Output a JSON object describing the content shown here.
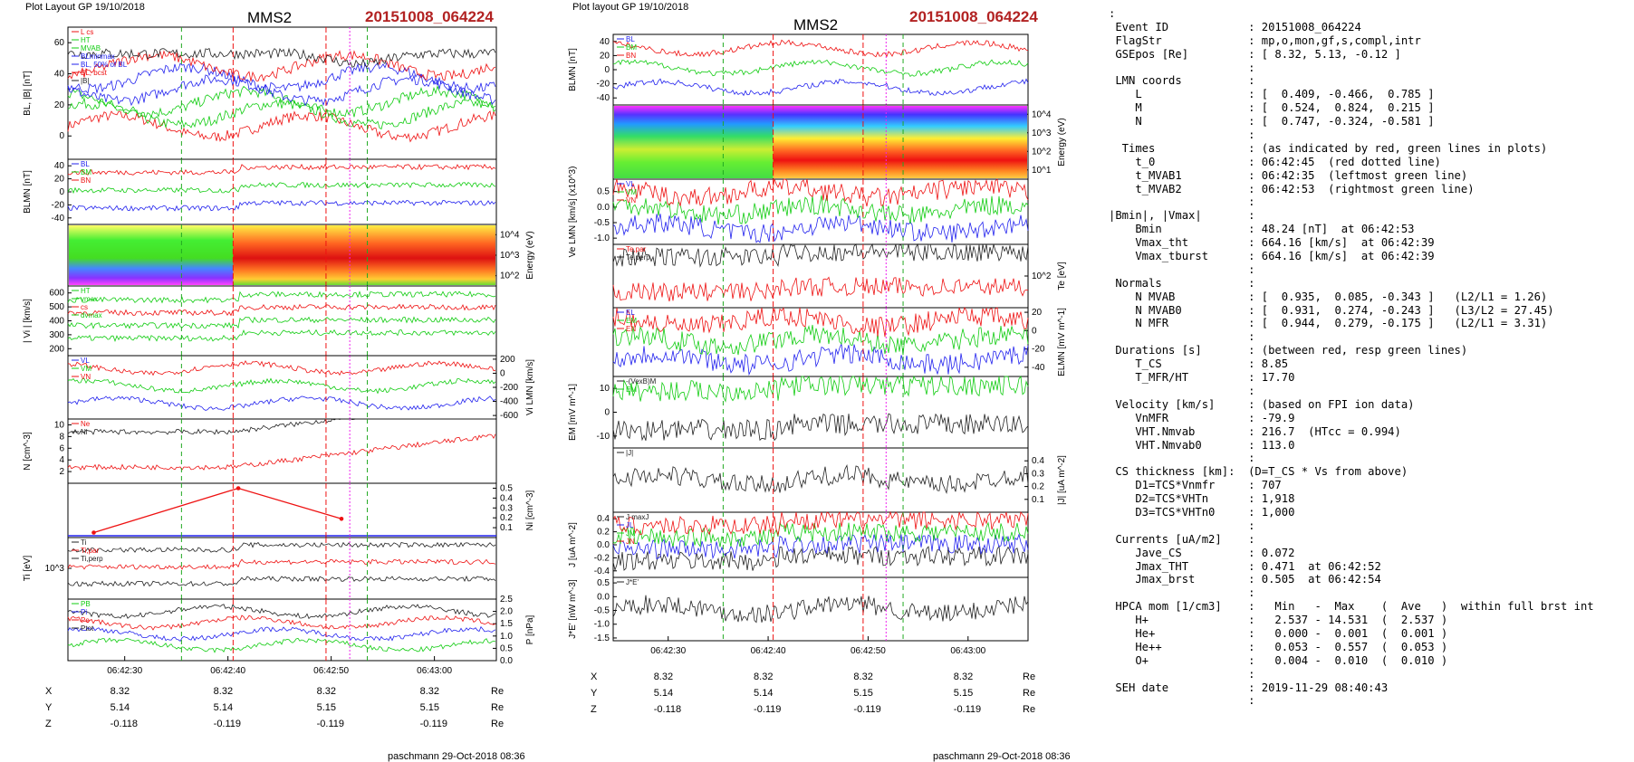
{
  "left_figure": {
    "header": "Plot Layout GP 19/10/2018",
    "spacecraft": "MMS2",
    "event": "20151008_064224",
    "footer": "paschmann 29-Oct-2018 08:36",
    "time_ticks": [
      "06:42:30",
      "06:42:40",
      "06:42:50",
      "06:43:00"
    ],
    "pos_rows": [
      {
        "label": "X",
        "values": [
          "8.32",
          "8.32",
          "8.32",
          "8.32"
        ],
        "unit": "Re"
      },
      {
        "label": "Y",
        "values": [
          "5.14",
          "5.14",
          "5.15",
          "5.15"
        ],
        "unit": "Re"
      },
      {
        "label": "Z",
        "values": [
          "-0.118",
          "-0.119",
          "-0.119",
          "-0.119"
        ],
        "unit": "Re"
      }
    ]
  },
  "right_figure": {
    "header": "Plot layout GP 19/10/2018",
    "spacecraft": "MMS2",
    "event": "20151008_064224",
    "footer": "paschmann 29-Oct-2018 08:36",
    "time_ticks": [
      "06:42:30",
      "06:42:40",
      "06:42:50",
      "06:43:00"
    ],
    "pos_rows": [
      {
        "label": "X",
        "values": [
          "8.32",
          "8.32",
          "8.32",
          "8.32"
        ],
        "unit": "Re"
      },
      {
        "label": "Y",
        "values": [
          "5.14",
          "5.14",
          "5.15",
          "5.15"
        ],
        "unit": "Re"
      },
      {
        "label": "Z",
        "values": [
          "-0.118",
          "-0.119",
          "-0.119",
          "-0.119"
        ],
        "unit": "Re"
      }
    ]
  },
  "chart_data": [
    {
      "type": "line",
      "figure": "left",
      "ylabel": "BL, |B| [nT]",
      "ylim": [
        -15,
        70
      ],
      "yticks": [
        "0",
        "20",
        "40",
        "60"
      ],
      "legend": [
        "L cs",
        "HT",
        "MVAB",
        "BLminmax",
        "BL, 50% of BL",
        "BL, bcst",
        "|B|"
      ]
    },
    {
      "type": "line",
      "figure": "left",
      "ylabel": "BLMN [nT]",
      "ylim": [
        -50,
        50
      ],
      "yticks": [
        "-40",
        "-20",
        "0",
        "20",
        "40"
      ],
      "legend": [
        "BL",
        "BM",
        "BN"
      ]
    },
    {
      "type": "heatmap",
      "figure": "left",
      "ylabel": "Energy (eV)",
      "yticks": [
        "10^2",
        "10^3",
        "10^4"
      ]
    },
    {
      "type": "line",
      "figure": "left",
      "ylabel": "| Vi | [km/s]",
      "ylim": [
        150,
        650
      ],
      "yticks": [
        "200",
        "300",
        "400",
        "500",
        "600"
      ],
      "legend": [
        "HT",
        "vmax",
        "cs",
        "dvmax"
      ]
    },
    {
      "type": "line",
      "figure": "left",
      "ylabel": "Vi LMN [km/s]",
      "ylim": [
        -650,
        250
      ],
      "yticks": [
        "-600",
        "-400",
        "-200",
        "0",
        "200"
      ],
      "legend": [
        "VL",
        "VM",
        "VN"
      ]
    },
    {
      "type": "line",
      "figure": "left",
      "ylabel": "N [cm^-3]",
      "ylim": [
        0,
        11
      ],
      "yticks": [
        "2",
        "4",
        "6",
        "8",
        "10"
      ],
      "legend": [
        "Ne",
        "Ni"
      ]
    },
    {
      "type": "line",
      "figure": "left",
      "ylabel": "Ni [cm^-3]",
      "ylim": [
        0,
        0.55
      ],
      "yticks": [
        "0.1",
        "0.2",
        "0.3",
        "0.4",
        "0.5"
      ],
      "legend": [
        "N He+",
        "N He++",
        "N O+"
      ],
      "series": [
        {
          "name": "N He++",
          "x": [
            "06:42:27",
            "06:42:41",
            "06:42:51"
          ],
          "values": [
            0.05,
            0.5,
            0.19
          ]
        }
      ]
    },
    {
      "type": "line",
      "figure": "left",
      "ylabel": "Ti [eV]",
      "yticks": [
        "10^3"
      ],
      "legend": [
        "Ti",
        "Ti,par",
        "Ti,perp"
      ]
    },
    {
      "type": "line",
      "figure": "left",
      "ylabel": "P [nPa]",
      "ylim": [
        0,
        2.5
      ],
      "yticks": [
        "0.0",
        "0.5",
        "1.0",
        "1.5",
        "2.0",
        "2.5"
      ],
      "legend": [
        "PB",
        "Pi",
        "Pe",
        "Ptot"
      ]
    },
    {
      "type": "line",
      "figure": "right",
      "ylabel": "BLMN [nT]",
      "ylim": [
        -50,
        50
      ],
      "yticks": [
        "-40",
        "-20",
        "0",
        "20",
        "40"
      ],
      "legend": [
        "BL",
        "BM",
        "BN"
      ]
    },
    {
      "type": "heatmap",
      "figure": "right",
      "ylabel": "Energy (eV)",
      "yticks": [
        "10^1",
        "10^2",
        "10^3",
        "10^4"
      ]
    },
    {
      "type": "line",
      "figure": "right",
      "ylabel": "Ve LMN [km/s] (x10^3)",
      "ylim": [
        -1.2,
        0.9
      ],
      "yticks": [
        "-1.0",
        "-0.5",
        "0.0",
        "0.5"
      ],
      "legend": [
        "VL",
        "VM",
        "VN"
      ]
    },
    {
      "type": "line",
      "figure": "right",
      "ylabel": "Te [eV]",
      "yticks": [
        "10^2"
      ],
      "legend": [
        "Te,par",
        "Te,perp"
      ]
    },
    {
      "type": "line",
      "figure": "right",
      "ylabel": "ELMN [mV m^-1]",
      "ylim": [
        -50,
        25
      ],
      "yticks": [
        "-40",
        "-20",
        "0",
        "20"
      ],
      "legend": [
        "EL",
        "EM",
        "EN"
      ]
    },
    {
      "type": "line",
      "figure": "right",
      "ylabel": "EM [mV m^-1]",
      "ylim": [
        -15,
        15
      ],
      "yticks": [
        "-10",
        "0",
        "10"
      ],
      "legend": [
        "-(VexB)M",
        "EM"
      ]
    },
    {
      "type": "line",
      "figure": "right",
      "ylabel": "|J| [uA m^-2]",
      "ylim": [
        0,
        0.5
      ],
      "yticks": [
        "0.1",
        "0.2",
        "0.3",
        "0.4"
      ],
      "legend": [
        "|J|"
      ]
    },
    {
      "type": "line",
      "figure": "right",
      "ylabel": "J [uA m^-2]",
      "ylim": [
        -0.5,
        0.5
      ],
      "yticks": [
        "-0.4",
        "-0.2",
        "0.0",
        "0.2",
        "0.4"
      ],
      "legend": [
        "J maxJ",
        "JL",
        "JM",
        "JN"
      ]
    },
    {
      "type": "line",
      "figure": "right",
      "ylabel": "J*E' [nW m^-3]",
      "ylim": [
        -1.6,
        0.7
      ],
      "yticks": [
        "-1.5",
        "-1.0",
        "-0.5",
        "0.0",
        "0.5"
      ],
      "legend": [
        "J*E'"
      ]
    }
  ],
  "info": [
    ":",
    " Event ID            : 20151008_064224",
    " FlagStr             : mp,o,mon,gf,s,compl,intr",
    " GSEpos [Re]         : [ 8.32, 5.13, -0.12 ]",
    "                     :",
    " LMN coords          :",
    "    L                : [  0.409, -0.466,  0.785 ]",
    "    M                : [  0.524,  0.824,  0.215 ]",
    "    N                : [  0.747, -0.324, -0.581 ]",
    "                     :",
    "  Times              : (as indicated by red, green lines in plots)",
    "    t_0              : 06:42:45  (red dotted line)",
    "    t_MVAB1          : 06:42:35  (leftmost green line)",
    "    t_MVAB2          : 06:42:53  (rightmost green line)",
    "                     :",
    "|Bmin|, |Vmax|       :",
    "    Bmin             : 48.24 [nT]  at 06:42:53",
    "    Vmax_tht         : 664.16 [km/s]  at 06:42:39",
    "    Vmax_tburst      : 664.16 [km/s]  at 06:42:39",
    "                     :",
    " Normals             :",
    "    N MVAB           : [  0.935,  0.085, -0.343 ]   (L2/L1 = 1.26)",
    "    N MVAB0          : [  0.931,  0.274, -0.243 ]   (L3/L2 = 27.45)",
    "    N MFR            : [  0.944,  0.279, -0.175 ]   (L2/L1 = 3.31)",
    "                     :",
    " Durations [s]       : (between red, resp green lines)",
    "    T_CS             : 8.85",
    "    T_MFR/HT         : 17.70",
    "                     :",
    " Velocity [km/s]     : (based on FPI ion data)",
    "    VnMFR            : -79.9",
    "    VHT.Nmvab        : 216.7  (HTcc = 0.994)",
    "    VHT.Nmvab0       : 113.0",
    "                     :",
    " CS thickness [km]:  (D=T_CS * Vs from above)",
    "    D1=TCS*Vnmfr     : 707",
    "    D2=TCS*VHTn      : 1,918",
    "    D3=TCS*VHTn0     : 1,000",
    "                     :",
    " Currents [uA/m2]    :",
    "    Jave_CS          : 0.072",
    "    Jmax_THT         : 0.471  at 06:42:52",
    "    Jmax_brst        : 0.505  at 06:42:54",
    "                     :",
    " HPCA mom [1/cm3]    :   Min   -  Max    (  Ave   )  within full brst int",
    "    H+               :   2.537 - 14.531  (  2.537 )",
    "    He+              :   0.000 -  0.001  (  0.001 )",
    "    He++             :   0.053 -  0.557  (  0.053 )",
    "    O+               :   0.004 -  0.010  (  0.010 )",
    "                     :",
    " SEH date            : 2019-11-29 08:40:43",
    "                     :"
  ]
}
